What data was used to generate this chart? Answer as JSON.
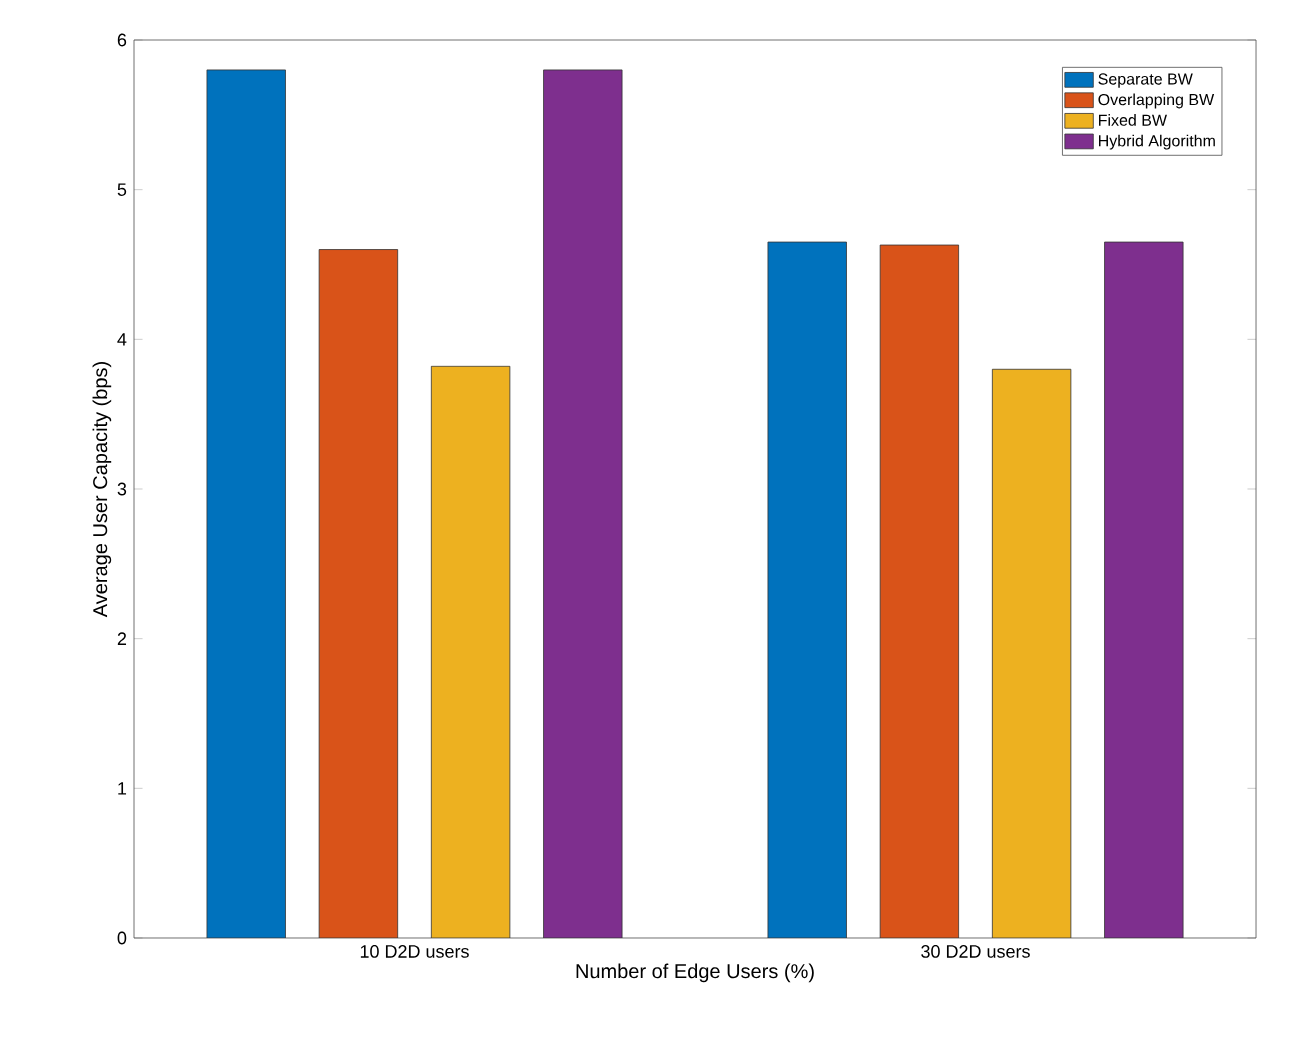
{
  "chart_data": {
    "type": "bar",
    "xlabel": "Number of Edge Users (%)",
    "ylabel": "Average User Capacity (bps)",
    "categories": [
      "10 D2D users",
      "30 D2D users"
    ],
    "series": [
      {
        "name": "Separate BW",
        "color": "#0072bd",
        "values": [
          5.8,
          4.65
        ]
      },
      {
        "name": "Overlapping BW",
        "color": "#d95319",
        "values": [
          4.6,
          4.63
        ]
      },
      {
        "name": "Fixed BW",
        "color": "#edb120",
        "values": [
          3.82,
          3.8
        ]
      },
      {
        "name": "Hybrid Algorithm",
        "color": "#7e2f8e",
        "values": [
          5.8,
          4.65
        ]
      }
    ],
    "ylim": [
      0,
      6
    ],
    "yticks": [
      0,
      1,
      2,
      3,
      4,
      5,
      6
    ],
    "grid": false,
    "legend": "top right"
  }
}
